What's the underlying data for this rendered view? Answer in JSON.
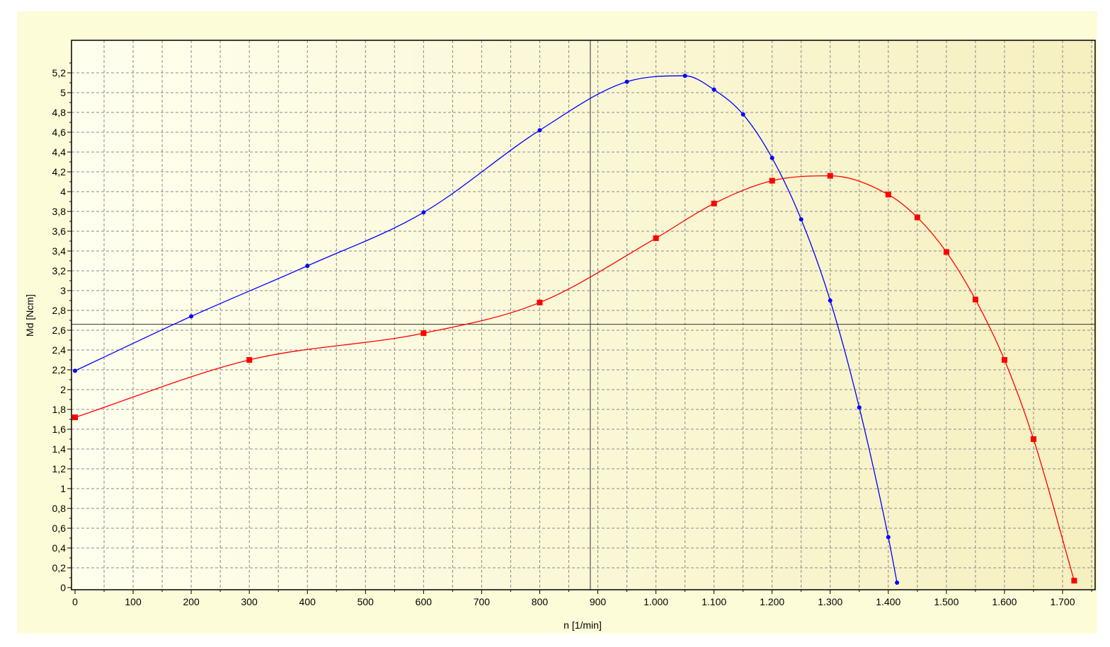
{
  "chart_data": {
    "type": "scatter",
    "title": "",
    "xlabel": "n [1/min]",
    "ylabel": "Md [Ncm]",
    "xlim": [
      0,
      1760
    ],
    "ylim": [
      0,
      5.3
    ],
    "grid": true,
    "legend": "none",
    "x_ticks": [
      "0",
      "100",
      "200",
      "300",
      "400",
      "500",
      "600",
      "700",
      "800",
      "900",
      "1.000",
      "1.100",
      "1.200",
      "1.300",
      "1.400",
      "1.500",
      "1.600",
      "1.700"
    ],
    "y_ticks": [
      "0",
      "0,2",
      "0,4",
      "0,6",
      "0,8",
      "1",
      "1,2",
      "1,4",
      "1,6",
      "1,8",
      "2",
      "2,2",
      "2,4",
      "2,6",
      "2,8",
      "3",
      "3,2",
      "3,4",
      "3,6",
      "3,8",
      "4",
      "4,2",
      "4,4",
      "4,6",
      "4,8",
      "5",
      "5,2"
    ],
    "crosshair": {
      "x": 887,
      "y": 2.66
    },
    "series": [
      {
        "color": "#0000ff",
        "marker": "dot",
        "points": [
          [
            0,
            2.19
          ],
          [
            200,
            2.74
          ],
          [
            400,
            3.25
          ],
          [
            600,
            3.79
          ],
          [
            800,
            4.62
          ],
          [
            950,
            5.11
          ],
          [
            1050,
            5.17
          ],
          [
            1100,
            5.03
          ],
          [
            1150,
            4.78
          ],
          [
            1200,
            4.34
          ],
          [
            1250,
            3.72
          ],
          [
            1300,
            2.9
          ],
          [
            1350,
            1.82
          ],
          [
            1400,
            0.51
          ],
          [
            1415,
            0.05
          ]
        ]
      },
      {
        "color": "#ff0000",
        "marker": "square",
        "points": [
          [
            0,
            1.72
          ],
          [
            300,
            2.3
          ],
          [
            600,
            2.57
          ],
          [
            800,
            2.88
          ],
          [
            1000,
            3.53
          ],
          [
            1100,
            3.88
          ],
          [
            1200,
            4.11
          ],
          [
            1300,
            4.16
          ],
          [
            1400,
            3.97
          ],
          [
            1450,
            3.74
          ],
          [
            1500,
            3.39
          ],
          [
            1550,
            2.91
          ],
          [
            1600,
            2.3
          ],
          [
            1650,
            1.5
          ],
          [
            1720,
            0.07
          ]
        ]
      }
    ]
  }
}
